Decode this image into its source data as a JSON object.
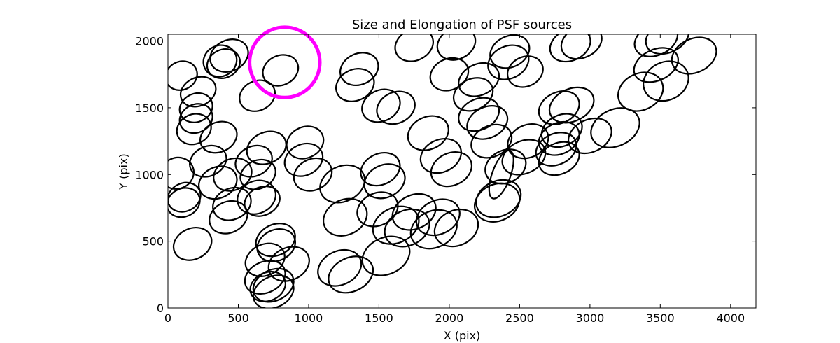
{
  "chart_data": {
    "type": "scatter",
    "title": "Size and Elongation of PSF sources",
    "xlabel": "X (pix)",
    "ylabel": "Y (pix)",
    "xlim": [
      0,
      4180
    ],
    "ylim": [
      0,
      2050
    ],
    "xticks": [
      0,
      500,
      1000,
      1500,
      2000,
      2500,
      3000,
      3500,
      4000
    ],
    "yticks": [
      0,
      500,
      1000,
      1500,
      2000
    ],
    "grid": false,
    "legend": "none",
    "ellipse_color": "#000000",
    "highlight_color": "#ff00ff",
    "highlight": {
      "x": 830,
      "y": 1840,
      "radius_x": 250
    },
    "ellipses": [
      {
        "x": 95,
        "y": 1740,
        "a": 115,
        "b": 100,
        "angle": -25
      },
      {
        "x": 215,
        "y": 1620,
        "a": 130,
        "b": 100,
        "angle": -25
      },
      {
        "x": 370,
        "y": 1850,
        "a": 120,
        "b": 110,
        "angle": -25
      },
      {
        "x": 435,
        "y": 1890,
        "a": 140,
        "b": 110,
        "angle": -25
      },
      {
        "x": 395,
        "y": 1830,
        "a": 120,
        "b": 100,
        "angle": -25
      },
      {
        "x": 635,
        "y": 1590,
        "a": 130,
        "b": 105,
        "angle": -25
      },
      {
        "x": 800,
        "y": 1780,
        "a": 130,
        "b": 105,
        "angle": -25
      },
      {
        "x": 200,
        "y": 1500,
        "a": 120,
        "b": 100,
        "angle": -25
      },
      {
        "x": 200,
        "y": 1420,
        "a": 120,
        "b": 100,
        "angle": -25
      },
      {
        "x": 185,
        "y": 1340,
        "a": 125,
        "b": 105,
        "angle": -25
      },
      {
        "x": 360,
        "y": 1280,
        "a": 135,
        "b": 105,
        "angle": -25
      },
      {
        "x": 285,
        "y": 1100,
        "a": 135,
        "b": 105,
        "angle": -25
      },
      {
        "x": 65,
        "y": 1010,
        "a": 120,
        "b": 110,
        "angle": -25
      },
      {
        "x": 355,
        "y": 940,
        "a": 140,
        "b": 110,
        "angle": -25
      },
      {
        "x": 460,
        "y": 1000,
        "a": 140,
        "b": 110,
        "angle": -25
      },
      {
        "x": 115,
        "y": 830,
        "a": 120,
        "b": 100,
        "angle": -25
      },
      {
        "x": 110,
        "y": 790,
        "a": 120,
        "b": 100,
        "angle": -25
      },
      {
        "x": 455,
        "y": 780,
        "a": 140,
        "b": 110,
        "angle": -25
      },
      {
        "x": 430,
        "y": 680,
        "a": 140,
        "b": 110,
        "angle": -25
      },
      {
        "x": 700,
        "y": 1200,
        "a": 145,
        "b": 110,
        "angle": -25
      },
      {
        "x": 610,
        "y": 1100,
        "a": 135,
        "b": 105,
        "angle": -25
      },
      {
        "x": 640,
        "y": 1000,
        "a": 130,
        "b": 100,
        "angle": -25
      },
      {
        "x": 630,
        "y": 830,
        "a": 140,
        "b": 115,
        "angle": -25
      },
      {
        "x": 670,
        "y": 800,
        "a": 130,
        "b": 100,
        "angle": -25
      },
      {
        "x": 975,
        "y": 1240,
        "a": 135,
        "b": 110,
        "angle": -25
      },
      {
        "x": 965,
        "y": 1110,
        "a": 140,
        "b": 110,
        "angle": -25
      },
      {
        "x": 1030,
        "y": 1000,
        "a": 140,
        "b": 110,
        "angle": -25
      },
      {
        "x": 175,
        "y": 480,
        "a": 140,
        "b": 110,
        "angle": -25
      },
      {
        "x": 765,
        "y": 510,
        "a": 145,
        "b": 110,
        "angle": -25
      },
      {
        "x": 770,
        "y": 470,
        "a": 140,
        "b": 110,
        "angle": -25
      },
      {
        "x": 690,
        "y": 360,
        "a": 145,
        "b": 110,
        "angle": -25
      },
      {
        "x": 860,
        "y": 330,
        "a": 150,
        "b": 115,
        "angle": -25
      },
      {
        "x": 690,
        "y": 230,
        "a": 150,
        "b": 110,
        "angle": -25
      },
      {
        "x": 750,
        "y": 170,
        "a": 150,
        "b": 110,
        "angle": -25
      },
      {
        "x": 750,
        "y": 120,
        "a": 150,
        "b": 110,
        "angle": -25
      },
      {
        "x": 710,
        "y": 160,
        "a": 130,
        "b": 100,
        "angle": -25
      },
      {
        "x": 1360,
        "y": 1790,
        "a": 140,
        "b": 110,
        "angle": -25
      },
      {
        "x": 1330,
        "y": 1670,
        "a": 140,
        "b": 110,
        "angle": -25
      },
      {
        "x": 1515,
        "y": 1515,
        "a": 140,
        "b": 110,
        "angle": -25
      },
      {
        "x": 1620,
        "y": 1500,
        "a": 140,
        "b": 110,
        "angle": -25
      },
      {
        "x": 1750,
        "y": 1970,
        "a": 140,
        "b": 110,
        "angle": -25
      },
      {
        "x": 2050,
        "y": 1980,
        "a": 140,
        "b": 110,
        "angle": -25
      },
      {
        "x": 2430,
        "y": 1920,
        "a": 145,
        "b": 110,
        "angle": -25
      },
      {
        "x": 2540,
        "y": 1770,
        "a": 130,
        "b": 105,
        "angle": -25
      },
      {
        "x": 2420,
        "y": 1840,
        "a": 150,
        "b": 115,
        "angle": -25
      },
      {
        "x": 2000,
        "y": 1750,
        "a": 140,
        "b": 110,
        "angle": -25
      },
      {
        "x": 2210,
        "y": 1710,
        "a": 150,
        "b": 110,
        "angle": -25
      },
      {
        "x": 2170,
        "y": 1600,
        "a": 145,
        "b": 110,
        "angle": -25
      },
      {
        "x": 2210,
        "y": 1450,
        "a": 150,
        "b": 110,
        "angle": -25
      },
      {
        "x": 2270,
        "y": 1390,
        "a": 150,
        "b": 110,
        "angle": -25
      },
      {
        "x": 1850,
        "y": 1310,
        "a": 150,
        "b": 115,
        "angle": -25
      },
      {
        "x": 1940,
        "y": 1140,
        "a": 150,
        "b": 115,
        "angle": -25
      },
      {
        "x": 2015,
        "y": 1040,
        "a": 150,
        "b": 115,
        "angle": -25
      },
      {
        "x": 2300,
        "y": 1250,
        "a": 150,
        "b": 110,
        "angle": -25
      },
      {
        "x": 2400,
        "y": 1060,
        "a": 150,
        "b": 115,
        "angle": -25
      },
      {
        "x": 2370,
        "y": 1000,
        "a": 180,
        "b": 65,
        "angle": -70
      },
      {
        "x": 2530,
        "y": 1130,
        "a": 160,
        "b": 115,
        "angle": -25
      },
      {
        "x": 2560,
        "y": 1250,
        "a": 150,
        "b": 115,
        "angle": -25
      },
      {
        "x": 2780,
        "y": 1500,
        "a": 150,
        "b": 110,
        "angle": -25
      },
      {
        "x": 2870,
        "y": 1520,
        "a": 165,
        "b": 115,
        "angle": -25
      },
      {
        "x": 2800,
        "y": 1330,
        "a": 150,
        "b": 110,
        "angle": -25
      },
      {
        "x": 2780,
        "y": 1270,
        "a": 150,
        "b": 110,
        "angle": -25
      },
      {
        "x": 2760,
        "y": 1190,
        "a": 150,
        "b": 110,
        "angle": -25
      },
      {
        "x": 2780,
        "y": 1120,
        "a": 150,
        "b": 110,
        "angle": -25
      },
      {
        "x": 3000,
        "y": 1290,
        "a": 160,
        "b": 115,
        "angle": -25
      },
      {
        "x": 3180,
        "y": 1350,
        "a": 180,
        "b": 130,
        "angle": -25
      },
      {
        "x": 2860,
        "y": 1970,
        "a": 150,
        "b": 110,
        "angle": -25
      },
      {
        "x": 2940,
        "y": 1990,
        "a": 150,
        "b": 110,
        "angle": -25
      },
      {
        "x": 3470,
        "y": 2010,
        "a": 160,
        "b": 110,
        "angle": -25
      },
      {
        "x": 3550,
        "y": 2030,
        "a": 160,
        "b": 110,
        "angle": -25
      },
      {
        "x": 3740,
        "y": 1890,
        "a": 165,
        "b": 120,
        "angle": -25
      },
      {
        "x": 3470,
        "y": 1820,
        "a": 165,
        "b": 110,
        "angle": -25
      },
      {
        "x": 3540,
        "y": 1700,
        "a": 165,
        "b": 135,
        "angle": -25
      },
      {
        "x": 3360,
        "y": 1620,
        "a": 165,
        "b": 130,
        "angle": -25
      },
      {
        "x": 1240,
        "y": 930,
        "a": 165,
        "b": 125,
        "angle": -25
      },
      {
        "x": 1510,
        "y": 1040,
        "a": 145,
        "b": 110,
        "angle": -25
      },
      {
        "x": 1540,
        "y": 950,
        "a": 150,
        "b": 115,
        "angle": -25
      },
      {
        "x": 1260,
        "y": 680,
        "a": 160,
        "b": 125,
        "angle": -25
      },
      {
        "x": 1490,
        "y": 740,
        "a": 150,
        "b": 115,
        "angle": -25
      },
      {
        "x": 1750,
        "y": 720,
        "a": 160,
        "b": 120,
        "angle": -25
      },
      {
        "x": 1920,
        "y": 680,
        "a": 160,
        "b": 120,
        "angle": -25
      },
      {
        "x": 1620,
        "y": 620,
        "a": 170,
        "b": 125,
        "angle": -25
      },
      {
        "x": 1700,
        "y": 600,
        "a": 165,
        "b": 125,
        "angle": -25
      },
      {
        "x": 1890,
        "y": 590,
        "a": 170,
        "b": 130,
        "angle": -25
      },
      {
        "x": 2050,
        "y": 600,
        "a": 160,
        "b": 125,
        "angle": -25
      },
      {
        "x": 2350,
        "y": 820,
        "a": 165,
        "b": 125,
        "angle": -25
      },
      {
        "x": 2340,
        "y": 790,
        "a": 165,
        "b": 130,
        "angle": -25
      },
      {
        "x": 1220,
        "y": 300,
        "a": 160,
        "b": 120,
        "angle": -25
      },
      {
        "x": 1300,
        "y": 250,
        "a": 165,
        "b": 120,
        "angle": -25
      },
      {
        "x": 1550,
        "y": 390,
        "a": 175,
        "b": 130,
        "angle": -25
      }
    ]
  }
}
